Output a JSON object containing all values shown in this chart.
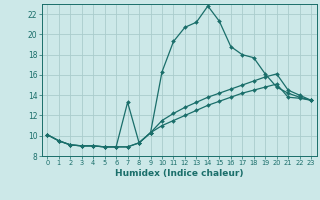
{
  "xlabel": "Humidex (Indice chaleur)",
  "background_color": "#cce8e8",
  "grid_color": "#aacccc",
  "line_color": "#1a6e6a",
  "xlim": [
    -0.5,
    23.5
  ],
  "ylim": [
    8,
    23
  ],
  "xticks": [
    0,
    1,
    2,
    3,
    4,
    5,
    6,
    7,
    8,
    9,
    10,
    11,
    12,
    13,
    14,
    15,
    16,
    17,
    18,
    19,
    20,
    21,
    22,
    23
  ],
  "yticks": [
    8,
    10,
    12,
    14,
    16,
    18,
    20,
    22
  ],
  "line1_x": [
    0,
    1,
    2,
    3,
    4,
    5,
    6,
    7,
    8,
    9,
    10,
    11,
    12,
    13,
    14,
    15,
    16,
    17,
    18,
    19,
    20,
    21,
    22,
    23
  ],
  "line1_y": [
    10.1,
    9.5,
    9.1,
    9.0,
    9.0,
    8.9,
    8.9,
    8.9,
    9.3,
    10.3,
    16.3,
    19.3,
    20.7,
    21.2,
    22.8,
    21.3,
    18.8,
    18.0,
    17.7,
    16.1,
    14.8,
    14.2,
    13.8,
    13.5
  ],
  "line2_x": [
    0,
    1,
    2,
    3,
    4,
    5,
    6,
    7,
    8,
    9,
    10,
    11,
    12,
    13,
    14,
    15,
    16,
    17,
    18,
    19,
    20,
    21,
    22,
    23
  ],
  "line2_y": [
    10.1,
    9.5,
    9.1,
    9.0,
    9.0,
    8.9,
    8.9,
    13.3,
    9.3,
    10.3,
    11.5,
    12.2,
    12.8,
    13.3,
    13.8,
    14.2,
    14.6,
    15.0,
    15.4,
    15.8,
    16.1,
    14.5,
    14.0,
    13.5
  ],
  "line3_x": [
    0,
    1,
    2,
    3,
    4,
    5,
    6,
    7,
    8,
    9,
    10,
    11,
    12,
    13,
    14,
    15,
    16,
    17,
    18,
    19,
    20,
    21,
    22,
    23
  ],
  "line3_y": [
    10.1,
    9.5,
    9.1,
    9.0,
    9.0,
    8.9,
    8.9,
    8.9,
    9.3,
    10.3,
    11.0,
    11.5,
    12.0,
    12.5,
    13.0,
    13.4,
    13.8,
    14.2,
    14.5,
    14.8,
    15.1,
    13.8,
    13.7,
    13.5
  ]
}
